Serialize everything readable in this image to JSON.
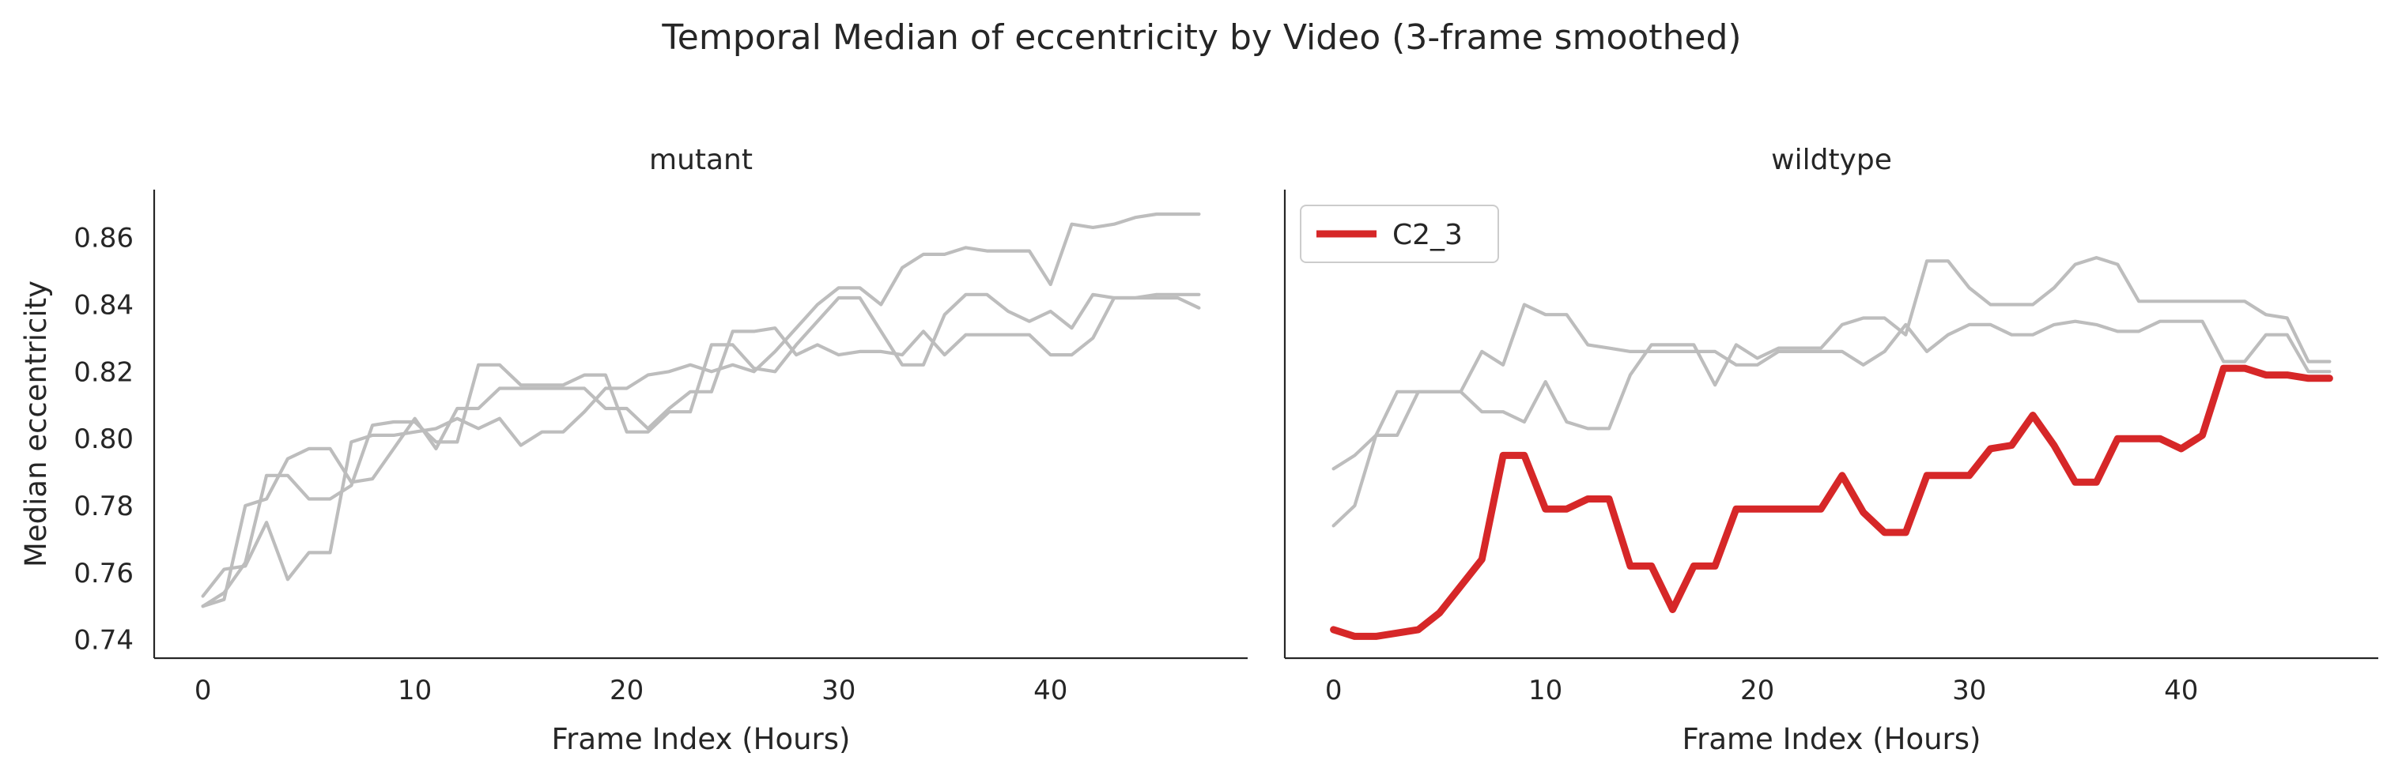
{
  "figure": {
    "title": "Temporal Median of eccentricity by Video (3-frame smoothed)"
  },
  "chart_data": [
    {
      "type": "line",
      "panel": "mutant",
      "title": "mutant",
      "xlabel": "Frame Index (Hours)",
      "ylabel": "Median eccentricity",
      "xlim": [
        -2.3,
        49.3
      ],
      "ylim": [
        0.7345,
        0.8743
      ],
      "xticks": [
        0,
        10,
        20,
        30,
        40
      ],
      "yticks": [
        0.74,
        0.76,
        0.78,
        0.8,
        0.82,
        0.84,
        0.86
      ],
      "ytick_labels": [
        "0.74",
        "0.76",
        "0.78",
        "0.80",
        "0.82",
        "0.84",
        "0.86"
      ],
      "grid": false,
      "series": [
        {
          "color": "#bdbdbd",
          "emphasis": false,
          "x": [
            0,
            1,
            2,
            3,
            4,
            5,
            6,
            7,
            8,
            9,
            10,
            11,
            12,
            13,
            14,
            15,
            16,
            17,
            18,
            19,
            20,
            21,
            22,
            23,
            24,
            25,
            26,
            27,
            28,
            29,
            30,
            31,
            32,
            33,
            34,
            35,
            36,
            37,
            38,
            39,
            40,
            41,
            42,
            43,
            44,
            45,
            46,
            47
          ],
          "values": [
            0.753,
            0.761,
            0.762,
            0.775,
            0.758,
            0.766,
            0.766,
            0.799,
            0.801,
            0.801,
            0.802,
            0.803,
            0.806,
            0.803,
            0.806,
            0.798,
            0.802,
            0.802,
            0.808,
            0.815,
            0.815,
            0.819,
            0.82,
            0.822,
            0.82,
            0.822,
            0.82,
            0.826,
            0.833,
            0.84,
            0.845,
            0.845,
            0.84,
            0.851,
            0.855,
            0.855,
            0.857,
            0.856,
            0.856,
            0.856,
            0.846,
            0.864,
            0.863,
            0.864,
            0.866,
            0.867,
            0.867,
            0.867
          ]
        },
        {
          "color": "#bdbdbd",
          "emphasis": false,
          "x": [
            0,
            1,
            2,
            3,
            4,
            5,
            6,
            7,
            8,
            9,
            10,
            11,
            12,
            13,
            14,
            15,
            16,
            17,
            18,
            19,
            20,
            21,
            22,
            23,
            24,
            25,
            26,
            27,
            28,
            29,
            30,
            31,
            32,
            33,
            34,
            35,
            36,
            37,
            38,
            39,
            40,
            41,
            42,
            43,
            44,
            45,
            46,
            47
          ],
          "values": [
            0.75,
            0.752,
            0.78,
            0.782,
            0.794,
            0.797,
            0.797,
            0.787,
            0.788,
            0.797,
            0.806,
            0.797,
            0.809,
            0.809,
            0.815,
            0.815,
            0.815,
            0.815,
            0.815,
            0.809,
            0.809,
            0.803,
            0.809,
            0.814,
            0.814,
            0.832,
            0.832,
            0.833,
            0.825,
            0.828,
            0.825,
            0.826,
            0.826,
            0.825,
            0.832,
            0.825,
            0.831,
            0.831,
            0.831,
            0.831,
            0.825,
            0.825,
            0.83,
            0.842,
            0.842,
            0.842,
            0.842,
            0.839
          ]
        },
        {
          "color": "#bdbdbd",
          "emphasis": false,
          "x": [
            0,
            1,
            2,
            3,
            4,
            5,
            6,
            7,
            8,
            9,
            10,
            11,
            12,
            13,
            14,
            15,
            16,
            17,
            18,
            19,
            20,
            21,
            22,
            23,
            24,
            25,
            26,
            27,
            28,
            29,
            30,
            31,
            32,
            33,
            34,
            35,
            36,
            37,
            38,
            39,
            40,
            41,
            42,
            43,
            44,
            45,
            46,
            47
          ],
          "values": [
            0.75,
            0.754,
            0.763,
            0.789,
            0.789,
            0.782,
            0.782,
            0.786,
            0.804,
            0.805,
            0.805,
            0.799,
            0.799,
            0.822,
            0.822,
            0.816,
            0.816,
            0.816,
            0.819,
            0.819,
            0.802,
            0.802,
            0.808,
            0.808,
            0.828,
            0.828,
            0.821,
            0.82,
            0.828,
            0.835,
            0.842,
            0.842,
            0.832,
            0.822,
            0.822,
            0.837,
            0.843,
            0.843,
            0.838,
            0.835,
            0.838,
            0.833,
            0.843,
            0.842,
            0.842,
            0.843,
            0.843,
            0.843
          ]
        }
      ]
    },
    {
      "type": "line",
      "panel": "wildtype",
      "title": "wildtype",
      "xlabel": "Frame Index (Hours)",
      "ylabel": "",
      "xlim": [
        -2.3,
        49.3
      ],
      "ylim": [
        0.7345,
        0.8743
      ],
      "xticks": [
        0,
        10,
        20,
        30,
        40
      ],
      "yticks": [],
      "grid": false,
      "legend": {
        "placement": "upper-left",
        "entries": [
          "C2_3"
        ]
      },
      "series": [
        {
          "color": "#bdbdbd",
          "emphasis": false,
          "x": [
            0,
            1,
            2,
            3,
            4,
            5,
            6,
            7,
            8,
            9,
            10,
            11,
            12,
            13,
            14,
            15,
            16,
            17,
            18,
            19,
            20,
            21,
            22,
            23,
            24,
            25,
            26,
            27,
            28,
            29,
            30,
            31,
            32,
            33,
            34,
            35,
            36,
            37,
            38,
            39,
            40,
            41,
            42,
            43,
            44,
            45,
            46,
            47
          ],
          "values": [
            0.774,
            0.78,
            0.801,
            0.801,
            0.814,
            0.814,
            0.814,
            0.808,
            0.808,
            0.805,
            0.817,
            0.805,
            0.803,
            0.803,
            0.819,
            0.828,
            0.828,
            0.828,
            0.816,
            0.828,
            0.824,
            0.827,
            0.827,
            0.827,
            0.834,
            0.836,
            0.836,
            0.831,
            0.853,
            0.853,
            0.845,
            0.84,
            0.84,
            0.84,
            0.845,
            0.852,
            0.854,
            0.852,
            0.841,
            0.841,
            0.841,
            0.841,
            0.841,
            0.841,
            0.837,
            0.836,
            0.823,
            0.823
          ]
        },
        {
          "color": "#bdbdbd",
          "emphasis": false,
          "x": [
            0,
            1,
            2,
            3,
            4,
            5,
            6,
            7,
            8,
            9,
            10,
            11,
            12,
            13,
            14,
            15,
            16,
            17,
            18,
            19,
            20,
            21,
            22,
            23,
            24,
            25,
            26,
            27,
            28,
            29,
            30,
            31,
            32,
            33,
            34,
            35,
            36,
            37,
            38,
            39,
            40,
            41,
            42,
            43,
            44,
            45,
            46,
            47
          ],
          "values": [
            0.791,
            0.795,
            0.801,
            0.814,
            0.814,
            0.814,
            0.814,
            0.826,
            0.822,
            0.84,
            0.837,
            0.837,
            0.828,
            0.827,
            0.826,
            0.826,
            0.826,
            0.826,
            0.826,
            0.822,
            0.822,
            0.826,
            0.826,
            0.826,
            0.826,
            0.822,
            0.826,
            0.834,
            0.826,
            0.831,
            0.834,
            0.834,
            0.831,
            0.831,
            0.834,
            0.835,
            0.834,
            0.832,
            0.832,
            0.835,
            0.835,
            0.835,
            0.823,
            0.823,
            0.831,
            0.831,
            0.82,
            0.82
          ]
        },
        {
          "name": "C2_3",
          "color": "#d62728",
          "emphasis": true,
          "x": [
            0,
            1,
            2,
            3,
            4,
            5,
            6,
            7,
            8,
            9,
            10,
            11,
            12,
            13,
            14,
            15,
            16,
            17,
            18,
            19,
            20,
            21,
            22,
            23,
            24,
            25,
            26,
            27,
            28,
            29,
            30,
            31,
            32,
            33,
            34,
            35,
            36,
            37,
            38,
            39,
            40,
            41,
            42,
            43,
            44,
            45,
            46,
            47
          ],
          "values": [
            0.743,
            0.741,
            0.741,
            0.742,
            0.743,
            0.748,
            0.756,
            0.764,
            0.795,
            0.795,
            0.779,
            0.779,
            0.782,
            0.782,
            0.762,
            0.762,
            0.749,
            0.762,
            0.762,
            0.779,
            0.779,
            0.779,
            0.779,
            0.779,
            0.789,
            0.778,
            0.772,
            0.772,
            0.789,
            0.789,
            0.789,
            0.797,
            0.798,
            0.807,
            0.798,
            0.787,
            0.787,
            0.8,
            0.8,
            0.8,
            0.797,
            0.801,
            0.821,
            0.821,
            0.819,
            0.819,
            0.818,
            0.818
          ]
        }
      ]
    }
  ]
}
